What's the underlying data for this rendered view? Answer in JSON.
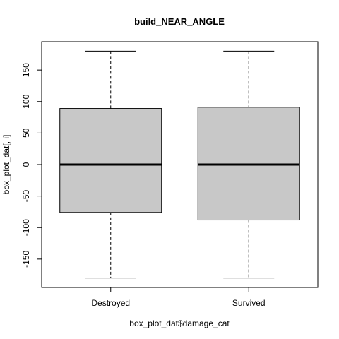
{
  "chart_data": {
    "type": "box",
    "title": "build_NEAR_ANGLE",
    "xlabel": "box_plot_dat$damage_cat",
    "ylabel": "box_plot_dat[, i]",
    "ylim": [
      -195,
      195
    ],
    "yticks": [
      -150,
      -100,
      -50,
      0,
      50,
      100,
      150
    ],
    "categories": [
      "Destroyed",
      "Survived"
    ],
    "boxes": [
      {
        "category": "Destroyed",
        "lower_whisker": -180,
        "q1": -76,
        "median": 0,
        "q3": 89,
        "upper_whisker": 180
      },
      {
        "category": "Survived",
        "lower_whisker": -180,
        "q1": -88,
        "median": 0,
        "q3": 91,
        "upper_whisker": 180
      }
    ],
    "box_fill": "#c8c8c8",
    "grid": false
  }
}
